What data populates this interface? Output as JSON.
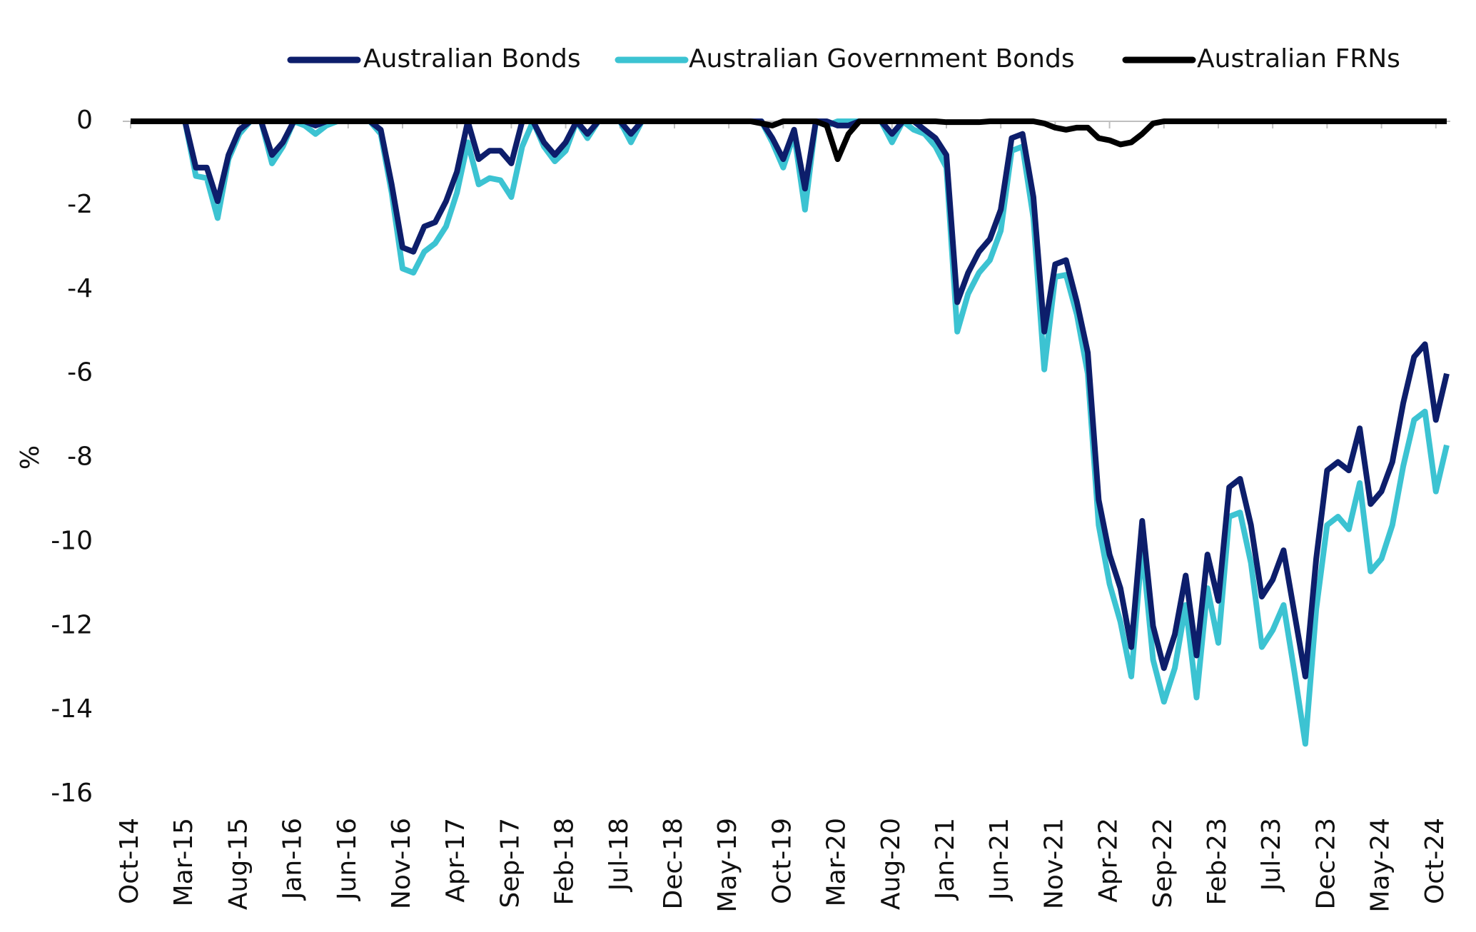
{
  "chart_data": {
    "type": "line",
    "y_label": "%",
    "categories": [
      "Oct-14",
      null,
      null,
      null,
      null,
      "Mar-15",
      null,
      null,
      null,
      null,
      "Aug-15",
      null,
      null,
      null,
      null,
      "Jan-16",
      null,
      null,
      null,
      null,
      "Jun-16",
      null,
      null,
      null,
      null,
      "Nov-16",
      null,
      null,
      null,
      null,
      "Apr-17",
      null,
      null,
      null,
      null,
      "Sep-17",
      null,
      null,
      null,
      null,
      "Feb-18",
      null,
      null,
      null,
      null,
      "Jul-18",
      null,
      null,
      null,
      null,
      "Dec-18",
      null,
      null,
      null,
      null,
      "May-19",
      null,
      null,
      null,
      null,
      "Oct-19",
      null,
      null,
      null,
      null,
      "Mar-20",
      null,
      null,
      null,
      null,
      "Aug-20",
      null,
      null,
      null,
      null,
      "Jan-21",
      null,
      null,
      null,
      null,
      "Jun-21",
      null,
      null,
      null,
      null,
      "Nov-21",
      null,
      null,
      null,
      null,
      "Apr-22",
      null,
      null,
      null,
      null,
      "Sep-22",
      null,
      null,
      null,
      null,
      "Feb-23",
      null,
      null,
      null,
      null,
      "Jul-23",
      null,
      null,
      null,
      null,
      "Dec-23",
      null,
      null,
      null,
      null,
      "May-24",
      null,
      null,
      null,
      null,
      "Oct-24",
      null
    ],
    "series": [
      {
        "name": "Australian Bonds",
        "color": "#0d1e6b",
        "values": [
          0,
          0,
          0,
          0,
          0,
          0,
          -1.1,
          -1.1,
          -1.9,
          -0.8,
          -0.2,
          0,
          0,
          -0.8,
          -0.5,
          0,
          0,
          -0.1,
          0,
          0,
          0,
          0,
          0,
          -0.2,
          -1.5,
          -3.0,
          -3.1,
          -2.5,
          -2.4,
          -1.9,
          -1.2,
          0,
          -0.9,
          -0.7,
          -0.7,
          -1.0,
          0,
          0,
          -0.5,
          -0.8,
          -0.5,
          0,
          -0.3,
          0,
          0,
          0,
          -0.3,
          0,
          0,
          0,
          0,
          0,
          0,
          0,
          0,
          0,
          0,
          0,
          0,
          -0.4,
          -0.9,
          -0.2,
          -1.6,
          0,
          0,
          -0.1,
          -0.1,
          0,
          0,
          0,
          -0.3,
          0,
          0,
          -0.2,
          -0.4,
          -0.8,
          -4.3,
          -3.6,
          -3.1,
          -2.8,
          -2.1,
          -0.4,
          -0.3,
          -1.8,
          -5.0,
          -3.4,
          -3.3,
          -4.3,
          -5.5,
          -9.0,
          -10.3,
          -11.1,
          -12.5,
          -9.5,
          -12.0,
          -13.0,
          -12.2,
          -10.8,
          -12.7,
          -10.3,
          -11.4,
          -8.7,
          -8.5,
          -9.6,
          -11.3,
          -10.9,
          -10.2,
          -11.7,
          -13.2,
          -10.4,
          -8.3,
          -8.1,
          -8.3,
          -7.3,
          -9.1,
          -8.8,
          -8.1,
          -6.7,
          -5.6,
          -5.3,
          -7.1,
          -6.0
        ]
      },
      {
        "name": "Australian Government Bonds",
        "color": "#3cc3d2",
        "values": [
          0,
          0,
          0,
          0,
          0,
          0,
          -1.3,
          -1.35,
          -2.3,
          -0.9,
          -0.3,
          0,
          0,
          -1.0,
          -0.6,
          0,
          -0.1,
          -0.3,
          -0.1,
          0,
          0,
          0,
          0,
          -0.3,
          -1.7,
          -3.5,
          -3.6,
          -3.1,
          -2.9,
          -2.5,
          -1.7,
          -0.5,
          -1.5,
          -1.35,
          -1.4,
          -1.8,
          -0.6,
          0,
          -0.6,
          -0.95,
          -0.7,
          0,
          -0.4,
          0,
          0,
          0,
          -0.5,
          0,
          0,
          0,
          0,
          0,
          0,
          0,
          0,
          0,
          0,
          0,
          0,
          -0.5,
          -1.1,
          -0.3,
          -2.1,
          0,
          -0.1,
          0,
          0,
          0,
          0,
          0,
          -0.5,
          0,
          -0.2,
          -0.3,
          -0.6,
          -1.1,
          -5.0,
          -4.1,
          -3.6,
          -3.3,
          -2.6,
          -0.7,
          -0.6,
          -2.3,
          -5.9,
          -3.7,
          -3.65,
          -4.6,
          -6.0,
          -9.6,
          -11.0,
          -11.9,
          -13.2,
          -10.1,
          -12.8,
          -13.8,
          -13.0,
          -11.5,
          -13.7,
          -11.1,
          -12.4,
          -9.4,
          -9.3,
          -10.5,
          -12.5,
          -12.1,
          -11.5,
          -13.1,
          -14.8,
          -11.6,
          -9.6,
          -9.4,
          -9.7,
          -8.6,
          -10.7,
          -10.4,
          -9.6,
          -8.2,
          -7.1,
          -6.9,
          -8.8,
          -7.7
        ]
      },
      {
        "name": "Australian FRNs",
        "color": "#000000",
        "values": [
          0,
          0,
          0,
          0,
          0,
          0,
          0,
          0,
          0,
          0,
          0,
          0,
          0,
          0,
          0,
          0,
          0,
          0,
          0,
          0,
          0,
          0,
          0,
          0,
          0,
          0,
          0,
          0,
          0,
          0,
          0,
          0,
          0,
          0,
          0,
          0,
          0,
          0,
          0,
          0,
          0,
          0,
          0,
          0,
          0,
          0,
          0,
          0,
          0,
          0,
          0,
          0,
          0,
          0,
          0,
          0,
          0,
          0,
          -0.05,
          -0.1,
          0,
          0,
          0,
          0,
          -0.1,
          -0.9,
          -0.3,
          0,
          0,
          0,
          0,
          0,
          0,
          0,
          0,
          -0.02,
          -0.02,
          -0.02,
          -0.02,
          0,
          0,
          0,
          0,
          0,
          -0.05,
          -0.15,
          -0.2,
          -0.15,
          -0.15,
          -0.4,
          -0.45,
          -0.55,
          -0.5,
          -0.3,
          -0.05,
          0,
          0,
          0,
          0,
          0,
          0,
          0,
          0,
          0,
          0,
          0,
          0,
          0,
          0,
          0,
          0,
          0,
          0,
          0,
          0,
          0,
          0,
          0,
          0,
          0,
          0,
          0
        ]
      }
    ],
    "ylim": [
      -16,
      0
    ],
    "yticks": [
      0,
      -2,
      -4,
      -6,
      -8,
      -10,
      -12,
      -14,
      -16
    ]
  }
}
